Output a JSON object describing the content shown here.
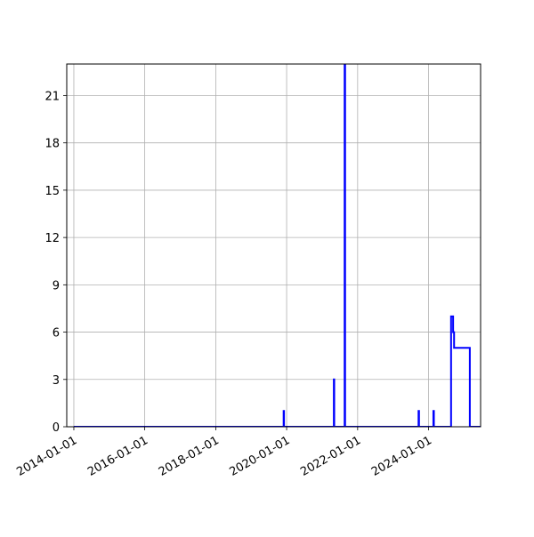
{
  "chart_data": {
    "type": "line",
    "drawstyle": "step",
    "title": "",
    "xlabel": "",
    "ylabel": "",
    "x_axis_type": "date",
    "xlim": [
      "2013-10-20",
      "2025-06-20"
    ],
    "ylim": [
      0,
      23
    ],
    "grid": true,
    "line_color": "#0000ff",
    "x_ticks": [
      "2014-01-01",
      "2016-01-01",
      "2018-01-01",
      "2020-01-01",
      "2022-01-01",
      "2024-01-01"
    ],
    "y_ticks": [
      0,
      3,
      6,
      9,
      12,
      15,
      18,
      21
    ],
    "series": [
      {
        "name": "",
        "points": [
          {
            "x": "2014-01-01",
            "y": 0
          },
          {
            "x": "2019-12-01",
            "y": 0
          },
          {
            "x": "2019-12-01",
            "y": 1
          },
          {
            "x": "2019-12-05",
            "y": 1
          },
          {
            "x": "2019-12-05",
            "y": 0
          },
          {
            "x": "2021-05-01",
            "y": 0
          },
          {
            "x": "2021-05-01",
            "y": 3
          },
          {
            "x": "2021-05-05",
            "y": 3
          },
          {
            "x": "2021-05-05",
            "y": 0
          },
          {
            "x": "2021-08-20",
            "y": 0
          },
          {
            "x": "2021-08-20",
            "y": 23
          },
          {
            "x": "2021-08-25",
            "y": 23
          },
          {
            "x": "2021-08-25",
            "y": 0
          },
          {
            "x": "2023-09-20",
            "y": 0
          },
          {
            "x": "2023-09-20",
            "y": 1
          },
          {
            "x": "2023-09-25",
            "y": 1
          },
          {
            "x": "2023-09-25",
            "y": 0
          },
          {
            "x": "2024-02-20",
            "y": 0
          },
          {
            "x": "2024-02-20",
            "y": 1
          },
          {
            "x": "2024-02-25",
            "y": 1
          },
          {
            "x": "2024-02-25",
            "y": 0
          },
          {
            "x": "2024-08-20",
            "y": 0
          },
          {
            "x": "2024-08-20",
            "y": 7
          },
          {
            "x": "2024-09-10",
            "y": 7
          },
          {
            "x": "2024-09-10",
            "y": 6
          },
          {
            "x": "2024-09-20",
            "y": 6
          },
          {
            "x": "2024-09-20",
            "y": 5
          },
          {
            "x": "2025-03-01",
            "y": 5
          },
          {
            "x": "2025-03-01",
            "y": 0
          },
          {
            "x": "2025-06-20",
            "y": 0
          }
        ]
      }
    ]
  }
}
